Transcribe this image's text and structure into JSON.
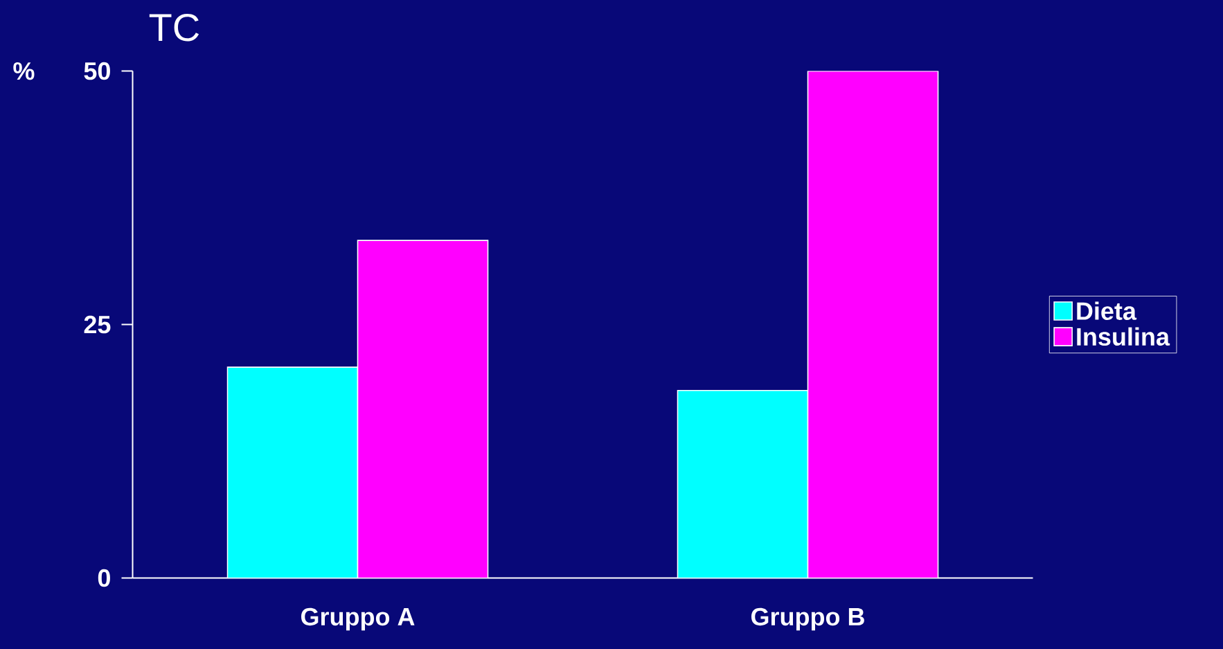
{
  "chart_data": {
    "type": "bar",
    "title": "TC",
    "ylabel": "%",
    "categories": [
      "Gruppo A",
      "Gruppo B"
    ],
    "series": [
      {
        "name": "Dieta",
        "color": "#00ffff",
        "values": [
          20.8,
          18.5
        ]
      },
      {
        "name": "Insulina",
        "color": "#ff00ff",
        "values": [
          33.3,
          50
        ]
      }
    ],
    "ylim": [
      0,
      50
    ],
    "yticks": [
      0,
      25,
      50
    ],
    "legend": "right",
    "grid": false
  }
}
